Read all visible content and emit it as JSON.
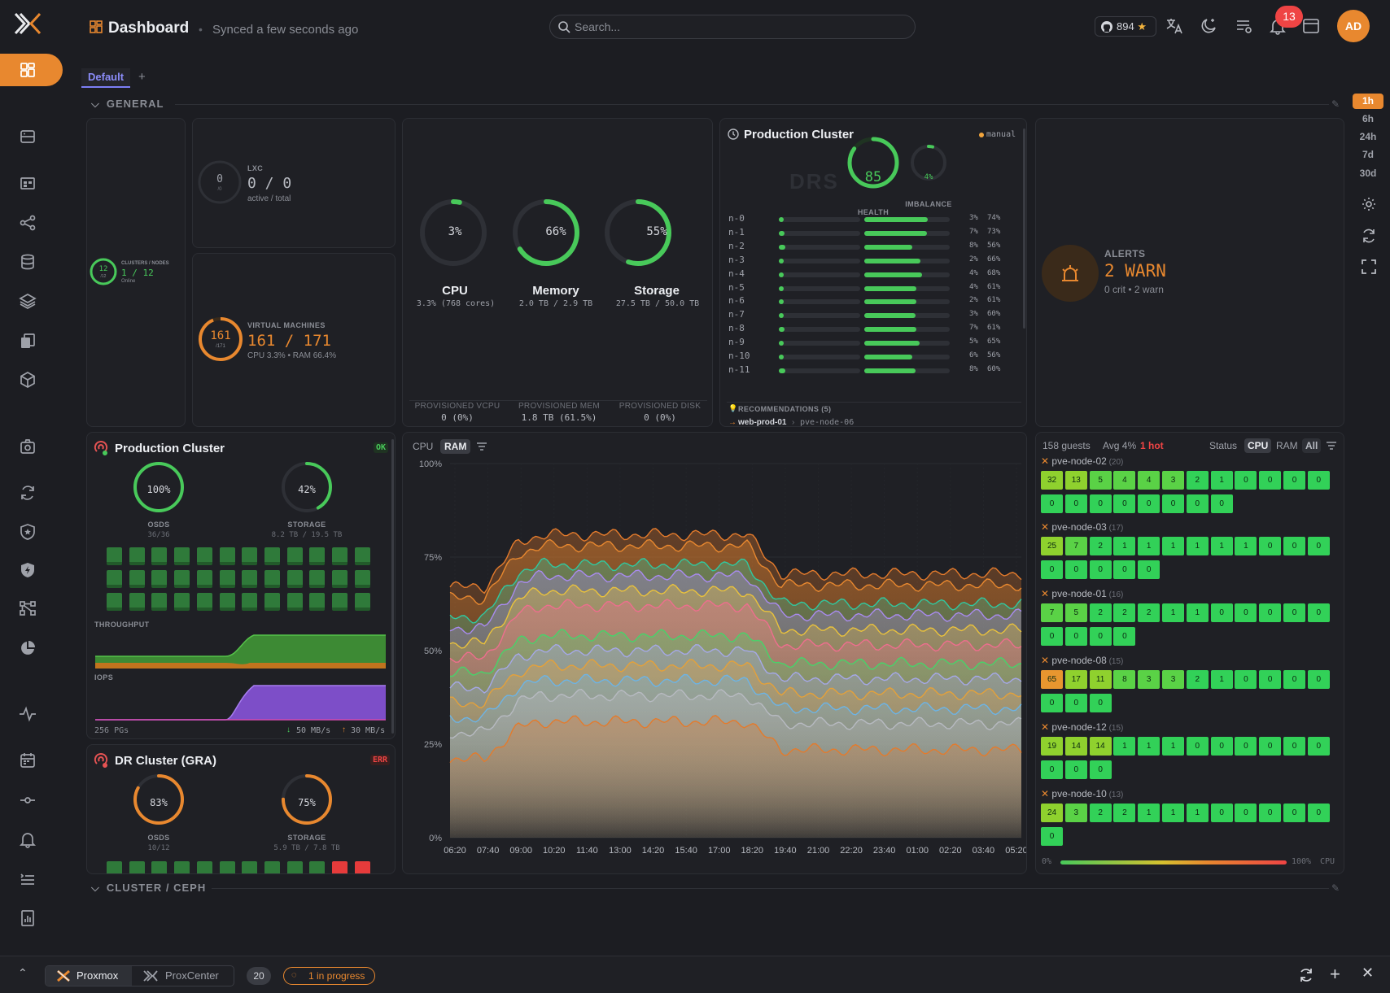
{
  "header": {
    "title": "Dashboard",
    "sync_status": "Synced a few seconds ago",
    "search_placeholder": "Search...",
    "github_stars": "894",
    "notifications_count": "13",
    "avatar_initials": "AD"
  },
  "tabs": [
    {
      "label": "Default",
      "active": true
    }
  ],
  "sections": {
    "general": "GENERAL",
    "cluster_ceph": "CLUSTER / CEPH"
  },
  "time_range": {
    "options": [
      "1h",
      "6h",
      "24h",
      "7d",
      "30d"
    ],
    "selected": "1h"
  },
  "clusters_nodes": {
    "ring": "12",
    "ring_sub": "/12",
    "label": "CLUSTERS / NODES",
    "value": "1 / 12",
    "status": "Online"
  },
  "lxc": {
    "ring": "0",
    "ring_sub": "/0",
    "label": "LXC",
    "value": "0 / 0",
    "sub": "active / total"
  },
  "vms": {
    "ring": "161",
    "ring_sub": "/171",
    "label": "VIRTUAL MACHINES",
    "value": "161 / 171",
    "sub": "CPU 3.3% • RAM 66.4%",
    "fraction": 0.94
  },
  "resources": {
    "gauges": [
      {
        "pct_label": "3%",
        "name": "CPU",
        "detail": "3.3% (768 cores)",
        "fraction": 0.033
      },
      {
        "pct_label": "66%",
        "name": "Memory",
        "detail": "2.0 TB / 2.9 TB",
        "fraction": 0.66
      },
      {
        "pct_label": "55%",
        "name": "Storage",
        "detail": "27.5 TB / 50.0 TB",
        "fraction": 0.55
      }
    ],
    "provisioned": [
      {
        "label": "PROVISIONED VCPU",
        "value": "0 (0%)"
      },
      {
        "label": "PROVISIONED MEM",
        "value": "1.8 TB (61.5%)"
      },
      {
        "label": "PROVISIONED DISK",
        "value": "0 (0%)"
      }
    ]
  },
  "drs": {
    "title": "Production Cluster",
    "mode": "manual",
    "watermark": "DRS",
    "health": "85",
    "health_label": "HEALTH",
    "health_fraction": 0.85,
    "imbalance": "4%",
    "imbalance_label": "IMBALANCE",
    "imbalance_fraction": 0.04,
    "nodes": [
      {
        "name": "n-0",
        "cpu": 3,
        "ram": 74,
        "cpu_label": "3%",
        "ram_label": "74%"
      },
      {
        "name": "n-1",
        "cpu": 7,
        "ram": 73,
        "cpu_label": "7%",
        "ram_label": "73%"
      },
      {
        "name": "n-2",
        "cpu": 8,
        "ram": 56,
        "cpu_label": "8%",
        "ram_label": "56%"
      },
      {
        "name": "n-3",
        "cpu": 2,
        "ram": 66,
        "cpu_label": "2%",
        "ram_label": "66%"
      },
      {
        "name": "n-4",
        "cpu": 4,
        "ram": 68,
        "cpu_label": "4%",
        "ram_label": "68%"
      },
      {
        "name": "n-5",
        "cpu": 4,
        "ram": 61,
        "cpu_label": "4%",
        "ram_label": "61%"
      },
      {
        "name": "n-6",
        "cpu": 2,
        "ram": 61,
        "cpu_label": "2%",
        "ram_label": "61%"
      },
      {
        "name": "n-7",
        "cpu": 3,
        "ram": 60,
        "cpu_label": "3%",
        "ram_label": "60%"
      },
      {
        "name": "n-8",
        "cpu": 7,
        "ram": 61,
        "cpu_label": "7%",
        "ram_label": "61%"
      },
      {
        "name": "n-9",
        "cpu": 5,
        "ram": 65,
        "cpu_label": "5%",
        "ram_label": "65%"
      },
      {
        "name": "n-10",
        "cpu": 6,
        "ram": 56,
        "cpu_label": "6%",
        "ram_label": "56%"
      },
      {
        "name": "n-11",
        "cpu": 8,
        "ram": 60,
        "cpu_label": "8%",
        "ram_label": "60%"
      }
    ],
    "recommendations": "RECOMMENDATIONS (5)",
    "rec_vm": "web-prod-01",
    "rec_target": "pve-node-06"
  },
  "alerts": {
    "label": "ALERTS",
    "value": "2 WARN",
    "sub": "0 crit • 2 warn"
  },
  "ceph_prod": {
    "title": "Production Cluster",
    "status": "OK",
    "osds": "100%",
    "osds_fraction": 1.0,
    "osds_label": "OSDS",
    "osds_sub": "36/36",
    "storage": "42%",
    "storage_fraction": 0.42,
    "storage_label": "STORAGE",
    "storage_sub": "8.2 TB / 19.5 TB",
    "throughput_label": "THROUGHPUT",
    "iops_label": "IOPS",
    "pgs": "256 PGs",
    "read": "50 MB/s",
    "write": "30 MB/s",
    "osd_total": 36,
    "osd_down": 0
  },
  "ceph_dr": {
    "title": "DR Cluster (GRA)",
    "status": "ERR",
    "osds": "83%",
    "osds_fraction": 0.83,
    "osds_label": "OSDS",
    "osds_sub": "10/12",
    "storage": "75%",
    "storage_fraction": 0.75,
    "storage_label": "STORAGE",
    "storage_sub": "5.9 TB / 7.8 TB",
    "osd_total": 12,
    "osd_down": 2
  },
  "usage_chart": {
    "tabs": [
      "CPU",
      "RAM"
    ],
    "selected": "RAM"
  },
  "chart_data": {
    "type": "area",
    "title": "",
    "x": [
      "06:20",
      "07:40",
      "09:00",
      "10:20",
      "11:40",
      "13:00",
      "14:20",
      "15:40",
      "17:00",
      "18:20",
      "19:40",
      "21:00",
      "22:20",
      "23:40",
      "01:00",
      "02:20",
      "03:40",
      "05:20"
    ],
    "y_ticks": [
      "100%",
      "75%",
      "50%",
      "25%",
      "0%"
    ],
    "ylim": [
      0,
      100
    ],
    "series_colors": [
      "#e47b2c",
      "#e8882f",
      "#30c9a0",
      "#a98bf0",
      "#eac23c",
      "#ee6e8e",
      "#48d36a",
      "#a5a8e8",
      "#e4a13a",
      "#6cb4e6",
      "#b7bac1",
      "#e47b2c"
    ],
    "series_levels": [
      77,
      74,
      69,
      66,
      62,
      58,
      54,
      50,
      46,
      42,
      38,
      31
    ]
  },
  "heatmap": {
    "guests": "158 guests",
    "avg": "Avg 4%",
    "hot": "1 hot",
    "status_label": "Status",
    "tabs": [
      "CPU",
      "RAM",
      "All"
    ],
    "selected": "CPU",
    "scale_min": "0%",
    "scale_max": "100%",
    "scale_unit": "CPU",
    "nodes": [
      {
        "name": "pve-node-02",
        "count": "(20)",
        "values": [
          32,
          13,
          5,
          4,
          4,
          3,
          2,
          1,
          0,
          0,
          0,
          0,
          0,
          0,
          0,
          0,
          0,
          0,
          0,
          0
        ]
      },
      {
        "name": "pve-node-03",
        "count": "(17)",
        "values": [
          25,
          7,
          2,
          1,
          1,
          1,
          1,
          1,
          1,
          0,
          0,
          0,
          0,
          0,
          0,
          0,
          0
        ]
      },
      {
        "name": "pve-node-01",
        "count": "(16)",
        "values": [
          7,
          5,
          2,
          2,
          2,
          1,
          1,
          0,
          0,
          0,
          0,
          0,
          0,
          0,
          0,
          0
        ]
      },
      {
        "name": "pve-node-08",
        "count": "(15)",
        "values": [
          65,
          17,
          11,
          8,
          3,
          3,
          2,
          1,
          0,
          0,
          0,
          0,
          0,
          0,
          0
        ]
      },
      {
        "name": "pve-node-12",
        "count": "(15)",
        "values": [
          19,
          14,
          14,
          1,
          1,
          1,
          0,
          0,
          0,
          0,
          0,
          0,
          0,
          0,
          0
        ]
      },
      {
        "name": "pve-node-10",
        "count": "(13)",
        "values": [
          24,
          3,
          2,
          2,
          1,
          1,
          1,
          0,
          0,
          0,
          0,
          0,
          0
        ]
      }
    ]
  },
  "footer": {
    "tabs": [
      {
        "label": "Proxmox",
        "active": true
      },
      {
        "label": "ProxCenter",
        "active": false
      }
    ],
    "count": "20",
    "progress": "1 in progress"
  },
  "colors": {
    "accent": "#e8882f",
    "ok": "#48c95a",
    "warn": "#e8882f",
    "err": "#ef4444",
    "purple": "#7d4ec8"
  }
}
